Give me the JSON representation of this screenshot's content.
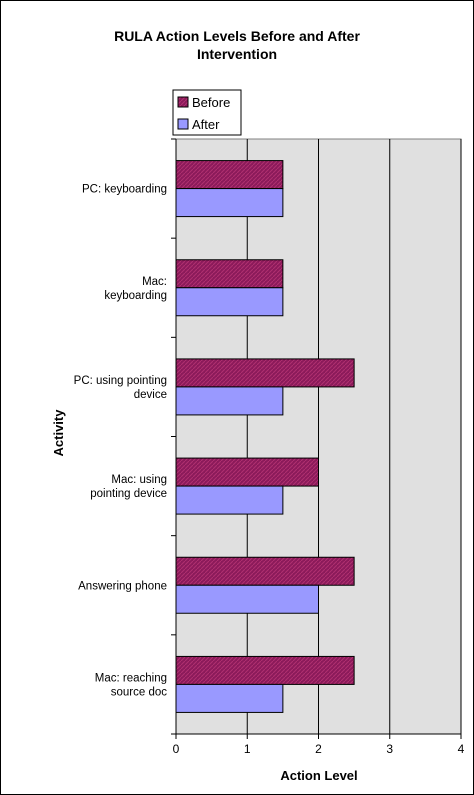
{
  "chart_data": {
    "type": "bar",
    "orientation": "horizontal",
    "title_lines": [
      "RULA Action Levels Before and After",
      "Intervention"
    ],
    "xlabel": "Action Level",
    "ylabel": "Activity",
    "xlim": [
      0,
      4
    ],
    "xticks": [
      0,
      1,
      2,
      3,
      4
    ],
    "grid": "vertical major gridlines",
    "plot_background": "#e0e0e0",
    "legend_position": "top-left",
    "categories": [
      [
        "PC: keyboarding"
      ],
      [
        "Mac:",
        "keyboarding"
      ],
      [
        "PC: using pointing",
        "device"
      ],
      [
        "Mac: using",
        "pointing device"
      ],
      [
        "Answering phone"
      ],
      [
        "Mac: reaching",
        "source doc"
      ]
    ],
    "series": [
      {
        "name": "Before",
        "color": "#8b1a5a",
        "values": [
          1.5,
          1.5,
          2.5,
          2.0,
          2.5,
          2.5
        ]
      },
      {
        "name": "After",
        "color": "#9999ff",
        "values": [
          1.5,
          1.5,
          1.5,
          1.5,
          2.0,
          1.5
        ]
      }
    ]
  }
}
